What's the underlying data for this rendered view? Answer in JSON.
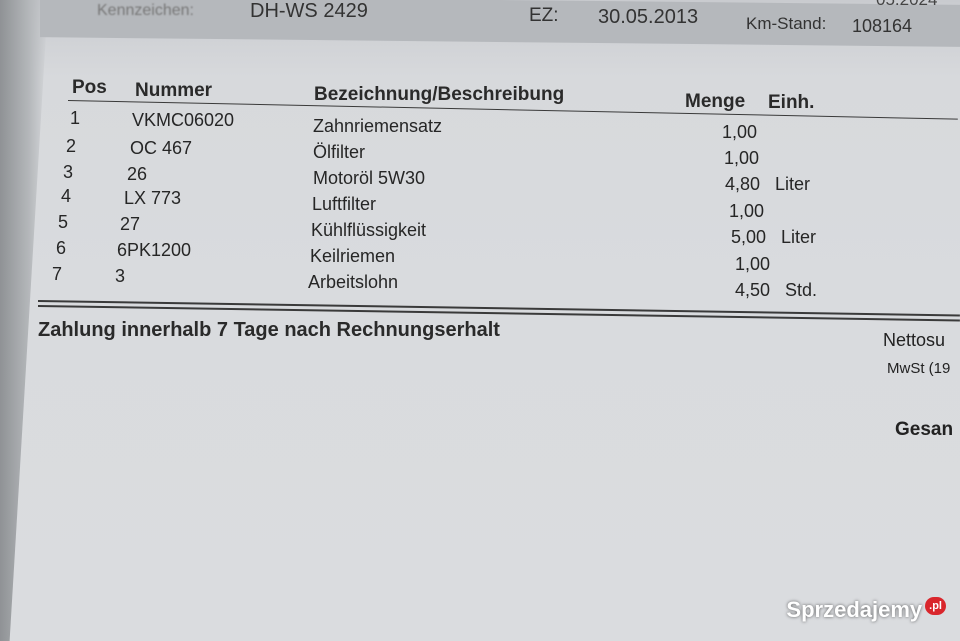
{
  "top": {
    "top_right_partial": "05.2024",
    "kennzeichen_label": "Kennzeichen:",
    "kennzeichen_value": "DH-WS 2429",
    "ez_label": "EZ:",
    "ez_value": "30.05.2013",
    "km_label": "Km-Stand:",
    "km_value": "108164"
  },
  "table": {
    "headers": {
      "pos": "Pos",
      "nummer": "Nummer",
      "bezeichnung": "Bezeichnung/Beschreibung",
      "menge": "Menge",
      "einh": "Einh."
    },
    "rows": [
      {
        "pos": "1",
        "nummer": "VKMC06020",
        "bezeichnung": "Zahnriemensatz",
        "menge": "1,00",
        "einh": ""
      },
      {
        "pos": "2",
        "nummer": "OC 467",
        "bezeichnung": "Ölfilter",
        "menge": "1,00",
        "einh": ""
      },
      {
        "pos": "3",
        "nummer": "26",
        "bezeichnung": "Motoröl 5W30",
        "menge": "4,80",
        "einh": "Liter"
      },
      {
        "pos": "4",
        "nummer": "LX 773",
        "bezeichnung": "Luftfilter",
        "menge": "1,00",
        "einh": ""
      },
      {
        "pos": "5",
        "nummer": "27",
        "bezeichnung": "Kühlflüssigkeit",
        "menge": "5,00",
        "einh": "Liter"
      },
      {
        "pos": "6",
        "nummer": "6PK1200",
        "bezeichnung": "Keilriemen",
        "menge": "1,00",
        "einh": ""
      },
      {
        "pos": "7",
        "nummer": "3",
        "bezeichnung": "Arbeitslohn",
        "menge": "4,50",
        "einh": "Std."
      }
    ]
  },
  "footer": {
    "payment_terms": "Zahlung innerhalb 7 Tage nach Rechnungserhalt",
    "netto_label": "Nettosu",
    "mwst_label": "MwSt (19",
    "gesamt_label": "Gesan"
  },
  "watermark": {
    "text": "Sprzedajemy",
    "suffix": ".pl"
  }
}
